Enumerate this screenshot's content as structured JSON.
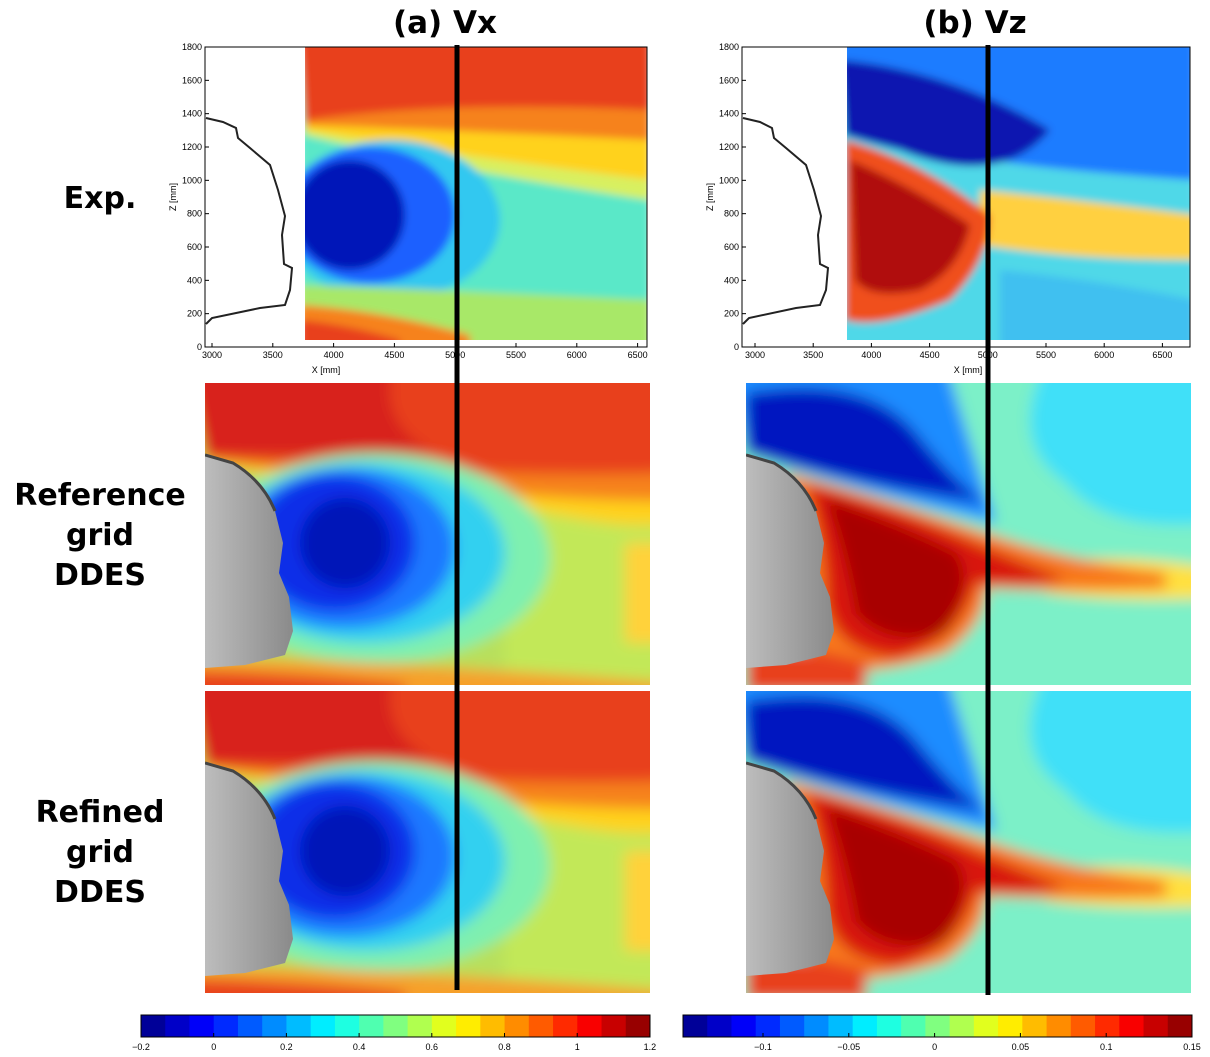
{
  "titles": [
    "(a) Vx",
    "(b) Vz"
  ],
  "row_labels": [
    [
      "Exp."
    ],
    [
      "Reference",
      "grid",
      "DDES"
    ],
    [
      "Refined",
      "grid",
      "DDES"
    ]
  ],
  "exp_axes": {
    "y_label": "Z [mm]",
    "x_label": "X [mm]",
    "y_ticks": [
      "0",
      "200",
      "400",
      "600",
      "800",
      "1000",
      "1200",
      "1400",
      "1600",
      "1800"
    ],
    "x_ticks": [
      "3000",
      "3500",
      "4000",
      "4500",
      "5000",
      "5500",
      "6000",
      "6500"
    ]
  },
  "colorbars": [
    {
      "ticks": [
        "−0.2",
        "0",
        "0.2",
        "0.4",
        "0.6",
        "0.8",
        "1",
        "1.2"
      ]
    },
    {
      "ticks": [
        "−0.1",
        "−0.05",
        "0",
        "0.05",
        "0.1",
        "0.15"
      ]
    }
  ]
}
